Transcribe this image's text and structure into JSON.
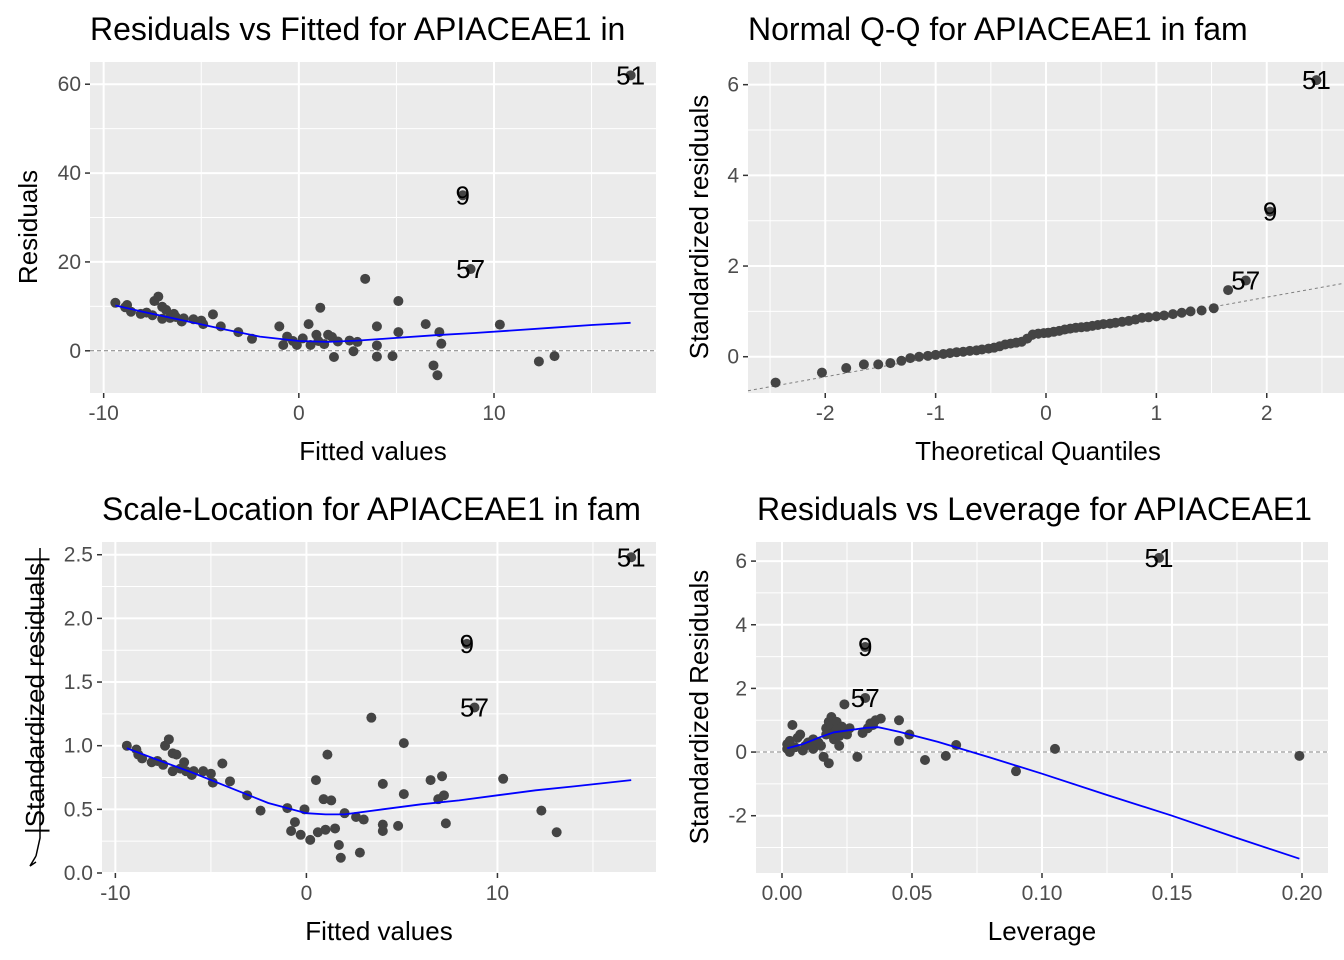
{
  "chart_data": [
    {
      "id": "rvf",
      "type": "scatter",
      "title": "Residuals vs Fitted for APIACEAE1 in",
      "xlabel": "Fitted values",
      "ylabel": "Residuals",
      "xlim": [
        -10.7,
        18.3
      ],
      "ylim": [
        -9.5,
        65
      ],
      "xticks": [
        -10,
        0,
        10
      ],
      "xtick_labels": [
        "-10",
        "0",
        "10"
      ],
      "yticks": [
        0,
        20,
        40,
        60
      ],
      "ytick_labels": [
        "0",
        "20",
        "40",
        "60"
      ],
      "grid": true,
      "hline": 0,
      "points": [
        [
          -9.4,
          10.8
        ],
        [
          -8.9,
          9.8
        ],
        [
          -8.8,
          10.3
        ],
        [
          -8.6,
          8.8
        ],
        [
          -8.1,
          8.3
        ],
        [
          -7.8,
          8.6
        ],
        [
          -7.5,
          8.0
        ],
        [
          -7.4,
          11.2
        ],
        [
          -7.2,
          12.2
        ],
        [
          -7.0,
          7.2
        ],
        [
          -7.0,
          9.9
        ],
        [
          -6.8,
          9.2
        ],
        [
          -6.6,
          7.4
        ],
        [
          -6.4,
          8.3
        ],
        [
          -6.3,
          7.6
        ],
        [
          -6.0,
          6.6
        ],
        [
          -5.9,
          7.3
        ],
        [
          -5.4,
          7.1
        ],
        [
          -5.0,
          6.8
        ],
        [
          -4.9,
          6.0
        ],
        [
          -4.4,
          8.2
        ],
        [
          -4.0,
          5.5
        ],
        [
          -3.1,
          4.2
        ],
        [
          -2.4,
          2.7
        ],
        [
          -0.8,
          1.3
        ],
        [
          -1.0,
          5.5
        ],
        [
          -0.6,
          3.2
        ],
        [
          -0.3,
          2.2
        ],
        [
          -0.1,
          1.3
        ],
        [
          0.2,
          2.8
        ],
        [
          0.5,
          6.0
        ],
        [
          0.6,
          1.3
        ],
        [
          0.9,
          3.6
        ],
        [
          1.0,
          2.2
        ],
        [
          1.1,
          9.7
        ],
        [
          1.3,
          1.5
        ],
        [
          1.5,
          3.6
        ],
        [
          1.7,
          3.1
        ],
        [
          1.8,
          -1.4
        ],
        [
          2.0,
          2.1
        ],
        [
          2.6,
          2.3
        ],
        [
          2.8,
          -0.1
        ],
        [
          3.0,
          2.0
        ],
        [
          3.4,
          16.2
        ],
        [
          4.0,
          5.5
        ],
        [
          4.0,
          1.2
        ],
        [
          4.0,
          -1.3
        ],
        [
          4.8,
          -1.2
        ],
        [
          5.1,
          4.2
        ],
        [
          5.1,
          11.2
        ],
        [
          6.5,
          6.0
        ],
        [
          6.9,
          -3.3
        ],
        [
          7.1,
          -5.5
        ],
        [
          7.2,
          4.2
        ],
        [
          7.3,
          1.6
        ],
        [
          8.4,
          35.0
        ],
        [
          8.8,
          18.4
        ],
        [
          10.3,
          5.9
        ],
        [
          12.3,
          -2.4
        ],
        [
          13.1,
          -1.2
        ],
        [
          17.0,
          62.0
        ]
      ],
      "smooth": [
        [
          -9.4,
          10.2
        ],
        [
          -8,
          8.8
        ],
        [
          -6,
          6.9
        ],
        [
          -4,
          5.0
        ],
        [
          -2,
          3.2
        ],
        [
          0,
          2.2
        ],
        [
          1.5,
          2.0
        ],
        [
          3,
          2.3
        ],
        [
          5,
          2.9
        ],
        [
          7,
          3.5
        ],
        [
          9,
          4.0
        ],
        [
          11,
          4.6
        ],
        [
          13,
          5.2
        ],
        [
          15,
          5.8
        ],
        [
          17,
          6.3
        ]
      ],
      "labels": [
        {
          "text": "51",
          "x": 17.0,
          "y": 62.0
        },
        {
          "text": "9",
          "x": 8.4,
          "y": 35.0
        },
        {
          "text": "57",
          "x": 8.8,
          "y": 18.4
        }
      ]
    },
    {
      "id": "qq",
      "type": "scatter",
      "title": "Normal Q-Q for APIACEAE1 in fam",
      "xlabel": "Theoretical Quantiles",
      "ylabel": "Standardized residuals",
      "xlim": [
        -2.7,
        2.7
      ],
      "ylim": [
        -0.8,
        6.5
      ],
      "xticks": [
        -2,
        -1,
        0,
        1,
        2
      ],
      "xtick_labels": [
        "-2",
        "-1",
        "0",
        "1",
        "2"
      ],
      "yticks": [
        0,
        2,
        4,
        6
      ],
      "ytick_labels": [
        "0",
        "2",
        "4",
        "6"
      ],
      "grid": true,
      "refline": [
        [
          -2.7,
          -0.75
        ],
        [
          2.7,
          1.62
        ]
      ],
      "points": [
        [
          -2.45,
          -0.57
        ],
        [
          -2.03,
          -0.35
        ],
        [
          -1.81,
          -0.25
        ],
        [
          -1.65,
          -0.17
        ],
        [
          -1.52,
          -0.17
        ],
        [
          -1.41,
          -0.14
        ],
        [
          -1.31,
          -0.09
        ],
        [
          -1.23,
          -0.03
        ],
        [
          -1.15,
          0.0
        ],
        [
          -1.07,
          0.02
        ],
        [
          -1.0,
          0.04
        ],
        [
          -0.93,
          0.06
        ],
        [
          -0.87,
          0.08
        ],
        [
          -0.81,
          0.1
        ],
        [
          -0.75,
          0.11
        ],
        [
          -0.69,
          0.13
        ],
        [
          -0.63,
          0.14
        ],
        [
          -0.58,
          0.16
        ],
        [
          -0.52,
          0.18
        ],
        [
          -0.47,
          0.2
        ],
        [
          -0.42,
          0.23
        ],
        [
          -0.37,
          0.27
        ],
        [
          -0.32,
          0.29
        ],
        [
          -0.27,
          0.31
        ],
        [
          -0.22,
          0.33
        ],
        [
          -0.17,
          0.4
        ],
        [
          -0.12,
          0.49
        ],
        [
          -0.07,
          0.51
        ],
        [
          -0.02,
          0.52
        ],
        [
          0.02,
          0.53
        ],
        [
          0.07,
          0.55
        ],
        [
          0.12,
          0.57
        ],
        [
          0.17,
          0.6
        ],
        [
          0.22,
          0.62
        ],
        [
          0.27,
          0.64
        ],
        [
          0.32,
          0.65
        ],
        [
          0.37,
          0.66
        ],
        [
          0.42,
          0.68
        ],
        [
          0.47,
          0.7
        ],
        [
          0.52,
          0.72
        ],
        [
          0.58,
          0.73
        ],
        [
          0.63,
          0.75
        ],
        [
          0.69,
          0.77
        ],
        [
          0.75,
          0.79
        ],
        [
          0.81,
          0.82
        ],
        [
          0.87,
          0.86
        ],
        [
          0.93,
          0.87
        ],
        [
          1.0,
          0.89
        ],
        [
          1.07,
          0.91
        ],
        [
          1.15,
          0.94
        ],
        [
          1.23,
          0.97
        ],
        [
          1.31,
          1.0
        ],
        [
          1.41,
          1.02
        ],
        [
          1.52,
          1.07
        ],
        [
          1.65,
          1.47
        ],
        [
          1.81,
          1.68
        ],
        [
          2.03,
          3.2
        ],
        [
          2.45,
          6.1
        ]
      ],
      "labels": [
        {
          "text": "51",
          "x": 2.45,
          "y": 6.1
        },
        {
          "text": "9",
          "x": 2.03,
          "y": 3.2
        },
        {
          "text": "57",
          "x": 1.81,
          "y": 1.68
        }
      ]
    },
    {
      "id": "sl",
      "type": "scatter",
      "title": "Scale-Location for APIACEAE1 in fam",
      "xlabel": "Fitted values",
      "ylabel": "√|Standardized residuals|",
      "ylabel_text": "|Standardized residuals|",
      "xlim": [
        -10.7,
        18.3
      ],
      "ylim": [
        0,
        2.6
      ],
      "xticks": [
        -10,
        0,
        10
      ],
      "xtick_labels": [
        "-10",
        "0",
        "10"
      ],
      "yticks": [
        0,
        0.5,
        1.0,
        1.5,
        2.0,
        2.5
      ],
      "ytick_labels": [
        "0.0",
        "0.5",
        "1.0",
        "1.5",
        "2.0",
        "2.5"
      ],
      "grid": true,
      "points": [
        [
          -9.4,
          1.0
        ],
        [
          -8.9,
          0.97
        ],
        [
          -8.8,
          0.93
        ],
        [
          -8.6,
          0.9
        ],
        [
          -8.1,
          0.87
        ],
        [
          -7.8,
          0.88
        ],
        [
          -7.5,
          0.85
        ],
        [
          -7.4,
          1.0
        ],
        [
          -7.2,
          1.05
        ],
        [
          -7.0,
          0.8
        ],
        [
          -7.0,
          0.94
        ],
        [
          -6.8,
          0.93
        ],
        [
          -6.6,
          0.82
        ],
        [
          -6.4,
          0.87
        ],
        [
          -6.3,
          0.8
        ],
        [
          -6.0,
          0.77
        ],
        [
          -5.9,
          0.8
        ],
        [
          -5.4,
          0.8
        ],
        [
          -5.0,
          0.78
        ],
        [
          -4.9,
          0.71
        ],
        [
          -4.4,
          0.86
        ],
        [
          -4.0,
          0.72
        ],
        [
          -3.1,
          0.61
        ],
        [
          -2.4,
          0.49
        ],
        [
          -0.8,
          0.33
        ],
        [
          -1.0,
          0.51
        ],
        [
          -0.6,
          0.4
        ],
        [
          -0.3,
          0.3
        ],
        [
          -0.1,
          0.5
        ],
        [
          0.2,
          0.26
        ],
        [
          0.5,
          0.73
        ],
        [
          0.6,
          0.32
        ],
        [
          0.9,
          0.58
        ],
        [
          1.0,
          0.34
        ],
        [
          1.1,
          0.93
        ],
        [
          1.3,
          0.57
        ],
        [
          1.5,
          0.35
        ],
        [
          1.7,
          0.22
        ],
        [
          1.8,
          0.12
        ],
        [
          2.0,
          0.47
        ],
        [
          2.6,
          0.44
        ],
        [
          2.8,
          0.16
        ],
        [
          3.0,
          0.42
        ],
        [
          3.4,
          1.22
        ],
        [
          4.0,
          0.7
        ],
        [
          4.0,
          0.38
        ],
        [
          4.0,
          0.33
        ],
        [
          4.8,
          0.37
        ],
        [
          5.1,
          0.62
        ],
        [
          5.1,
          1.02
        ],
        [
          6.5,
          0.73
        ],
        [
          6.9,
          0.58
        ],
        [
          7.1,
          0.76
        ],
        [
          7.2,
          0.61
        ],
        [
          7.3,
          0.39
        ],
        [
          8.4,
          1.8
        ],
        [
          8.8,
          1.3
        ],
        [
          10.3,
          0.74
        ],
        [
          12.3,
          0.49
        ],
        [
          13.1,
          0.32
        ],
        [
          17.0,
          2.48
        ]
      ],
      "smooth": [
        [
          -9.4,
          0.98
        ],
        [
          -8,
          0.9
        ],
        [
          -6,
          0.79
        ],
        [
          -4,
          0.67
        ],
        [
          -2,
          0.55
        ],
        [
          0,
          0.47
        ],
        [
          1,
          0.46
        ],
        [
          2,
          0.46
        ],
        [
          4,
          0.5
        ],
        [
          6,
          0.54
        ],
        [
          8,
          0.57
        ],
        [
          10,
          0.61
        ],
        [
          12,
          0.65
        ],
        [
          14,
          0.68
        ],
        [
          17,
          0.73
        ]
      ],
      "labels": [
        {
          "text": "51",
          "x": 17.0,
          "y": 2.48
        },
        {
          "text": "9",
          "x": 8.4,
          "y": 1.8
        },
        {
          "text": "57",
          "x": 8.8,
          "y": 1.3
        }
      ]
    },
    {
      "id": "rvl",
      "type": "scatter",
      "title": "Residuals vs Leverage for APIACEAE1",
      "xlabel": "Leverage",
      "ylabel": "Standardized Residuals",
      "xlim": [
        -0.01,
        0.21
      ],
      "ylim": [
        -3.8,
        6.6
      ],
      "xticks": [
        0.0,
        0.05,
        0.1,
        0.15,
        0.2
      ],
      "xtick_labels": [
        "0.00",
        "0.05",
        "0.10",
        "0.15",
        "0.20"
      ],
      "yticks": [
        -2,
        0,
        2,
        4,
        6
      ],
      "ytick_labels": [
        "-2",
        "0",
        "2",
        "4",
        "6"
      ],
      "grid": true,
      "hline": 0,
      "points": [
        [
          0.002,
          0.1
        ],
        [
          0.002,
          0.25
        ],
        [
          0.003,
          0.0
        ],
        [
          0.003,
          0.35
        ],
        [
          0.004,
          0.85
        ],
        [
          0.005,
          0.15
        ],
        [
          0.006,
          0.45
        ],
        [
          0.007,
          0.55
        ],
        [
          0.008,
          0.05
        ],
        [
          0.009,
          0.2
        ],
        [
          0.01,
          0.3
        ],
        [
          0.012,
          0.4
        ],
        [
          0.012,
          0.1
        ],
        [
          0.014,
          0.3
        ],
        [
          0.015,
          0.2
        ],
        [
          0.016,
          -0.15
        ],
        [
          0.017,
          0.55
        ],
        [
          0.017,
          0.75
        ],
        [
          0.018,
          -0.35
        ],
        [
          0.018,
          0.95
        ],
        [
          0.019,
          0.85
        ],
        [
          0.019,
          1.1
        ],
        [
          0.02,
          0.6
        ],
        [
          0.02,
          0.4
        ],
        [
          0.021,
          0.95
        ],
        [
          0.021,
          0.7
        ],
        [
          0.022,
          0.5
        ],
        [
          0.022,
          0.2
        ],
        [
          0.023,
          0.8
        ],
        [
          0.024,
          0.6
        ],
        [
          0.024,
          1.5
        ],
        [
          0.025,
          0.55
        ],
        [
          0.026,
          0.75
        ],
        [
          0.029,
          -0.15
        ],
        [
          0.031,
          0.6
        ],
        [
          0.032,
          3.3
        ],
        [
          0.032,
          1.7
        ],
        [
          0.033,
          0.75
        ],
        [
          0.034,
          0.9
        ],
        [
          0.035,
          0.85
        ],
        [
          0.036,
          1.0
        ],
        [
          0.038,
          1.05
        ],
        [
          0.045,
          1.0
        ],
        [
          0.045,
          0.35
        ],
        [
          0.049,
          0.55
        ],
        [
          0.055,
          -0.25
        ],
        [
          0.063,
          -0.12
        ],
        [
          0.067,
          0.22
        ],
        [
          0.09,
          -0.6
        ],
        [
          0.105,
          0.1
        ],
        [
          0.145,
          6.1
        ],
        [
          0.199,
          -0.12
        ]
      ],
      "smooth": [
        [
          0.002,
          0.12
        ],
        [
          0.008,
          0.25
        ],
        [
          0.015,
          0.48
        ],
        [
          0.02,
          0.62
        ],
        [
          0.027,
          0.7
        ],
        [
          0.032,
          0.76
        ],
        [
          0.037,
          0.78
        ],
        [
          0.045,
          0.64
        ],
        [
          0.06,
          0.32
        ],
        [
          0.08,
          -0.17
        ],
        [
          0.1,
          -0.68
        ],
        [
          0.125,
          -1.35
        ],
        [
          0.15,
          -2.0
        ],
        [
          0.175,
          -2.7
        ],
        [
          0.199,
          -3.35
        ]
      ],
      "labels": [
        {
          "text": "51",
          "x": 0.145,
          "y": 6.1
        },
        {
          "text": "9",
          "x": 0.032,
          "y": 3.3
        },
        {
          "text": "57",
          "x": 0.032,
          "y": 1.7
        }
      ]
    }
  ]
}
